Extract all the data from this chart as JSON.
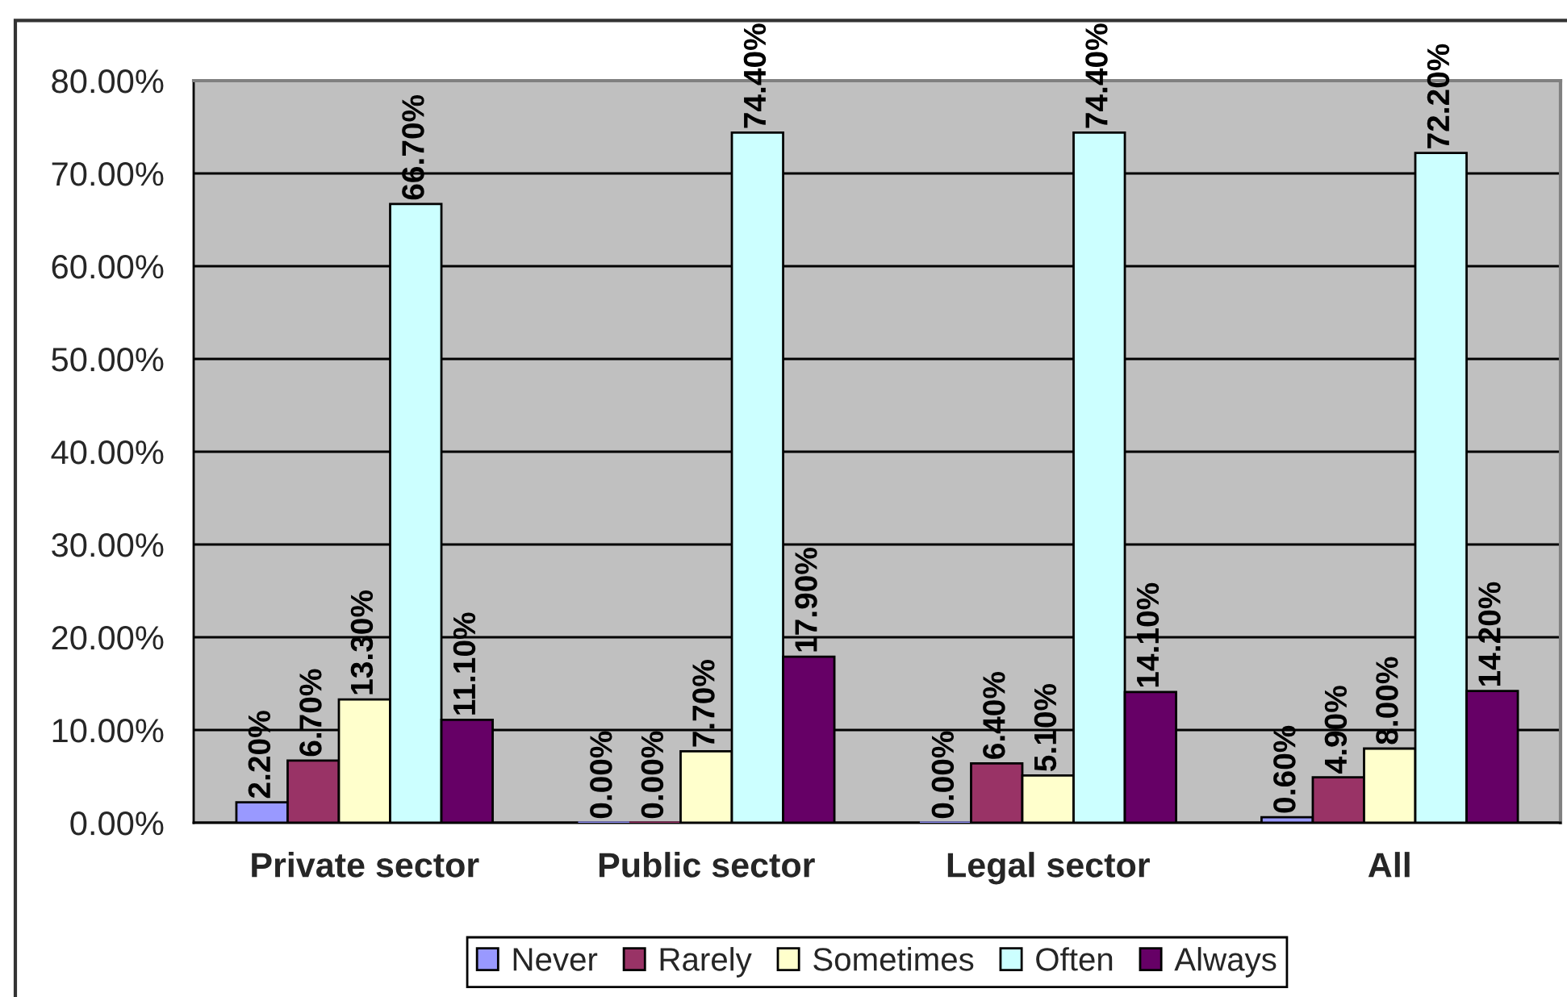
{
  "chart_data": {
    "type": "bar",
    "categories": [
      "Private sector",
      "Public sector",
      "Legal sector",
      "All"
    ],
    "series": [
      {
        "name": "Never",
        "color": "#9999ff",
        "values": [
          2.2,
          0,
          0,
          0.6
        ],
        "value_labels": [
          "2.20%",
          "0.00%",
          "0.00%",
          "0.60%"
        ]
      },
      {
        "name": "Rarely",
        "color": "#993366",
        "values": [
          6.7,
          0,
          6.4,
          4.9
        ],
        "value_labels": [
          "6.70%",
          "0.00%",
          "6.40%",
          "4.90%"
        ]
      },
      {
        "name": "Sometimes",
        "color": "#ffffcc",
        "values": [
          13.3,
          7.7,
          5.1,
          8.0
        ],
        "value_labels": [
          "13.30%",
          "7.70%",
          "5.10%",
          "8.00%"
        ]
      },
      {
        "name": "Often",
        "color": "#ccffff",
        "values": [
          66.7,
          74.4,
          74.4,
          72.2
        ],
        "value_labels": [
          "66.70%",
          "74.40%",
          "74.40%",
          "72.20%"
        ]
      },
      {
        "name": "Always",
        "color": "#660066",
        "values": [
          11.1,
          17.9,
          14.1,
          14.2
        ],
        "value_labels": [
          "11.10%",
          "17.90%",
          "14.10%",
          "14.20%"
        ]
      }
    ],
    "ylim": [
      0,
      80
    ],
    "yticks": [
      {
        "value": 0,
        "label": "0.00%"
      },
      {
        "value": 10,
        "label": "10.00%"
      },
      {
        "value": 20,
        "label": "20.00%"
      },
      {
        "value": 30,
        "label": "30.00%"
      },
      {
        "value": 40,
        "label": "40.00%"
      },
      {
        "value": 50,
        "label": "50.00%"
      },
      {
        "value": 60,
        "label": "60.00%"
      },
      {
        "value": 70,
        "label": "70.00%"
      },
      {
        "value": 80,
        "label": "80.00%"
      }
    ],
    "grid": "y",
    "legend": "bottom"
  }
}
